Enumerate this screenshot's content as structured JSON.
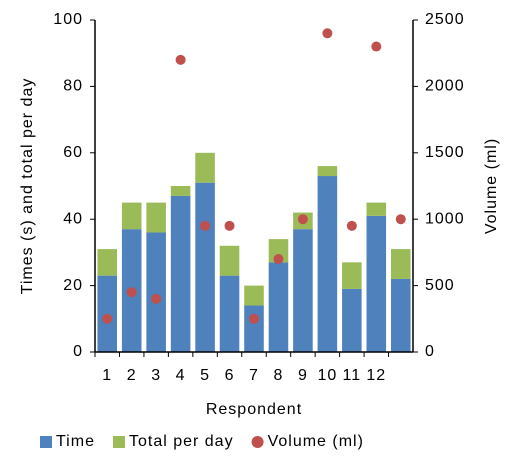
{
  "chart_data": {
    "type": "bar",
    "stacked": true,
    "y_label": "Times (s) and total per day",
    "y2_label": "Volume (ml)",
    "x_label": "Respondent",
    "categories": [
      "1",
      "2",
      "3",
      "4",
      "5",
      "6",
      "7",
      "8",
      "9",
      "10",
      "11",
      "12",
      null
    ],
    "series": [
      {
        "name": "Time",
        "color": "#4f81bd",
        "values": [
          23,
          37,
          36,
          47,
          51,
          23,
          14,
          27,
          37,
          53,
          19,
          41,
          22
        ]
      },
      {
        "name": "Total per day",
        "color": "#9bbb59",
        "values": [
          8,
          8,
          9,
          3,
          9,
          9,
          6,
          7,
          5,
          3,
          8,
          4,
          9
        ]
      },
      {
        "name": "Volume (ml)",
        "color": "#c0504d",
        "type": "scatter",
        "axis": "y2",
        "values": [
          250,
          450,
          400,
          2200,
          950,
          950,
          250,
          700,
          1000,
          2400,
          950,
          2300,
          1000
        ]
      }
    ],
    "ylim": [
      0,
      100
    ],
    "yticks": [
      0,
      20,
      40,
      60,
      80,
      100
    ],
    "y2lim": [
      0,
      2500
    ],
    "y2ticks": [
      0,
      500,
      1000,
      1500,
      2000,
      2500
    ],
    "legend": "bottom"
  }
}
